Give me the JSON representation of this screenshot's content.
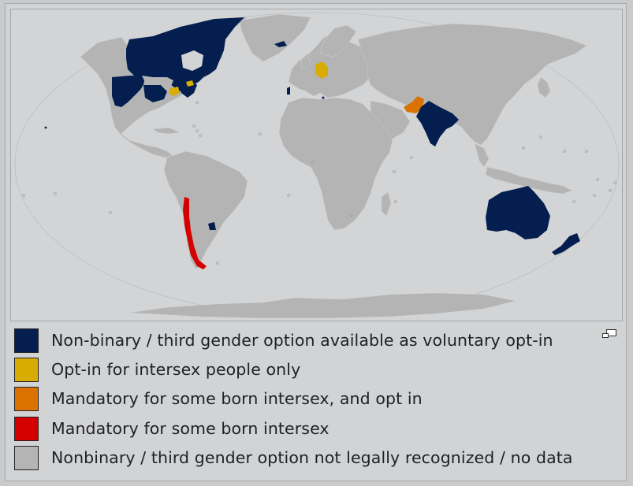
{
  "colors": {
    "voluntary_opt_in": "#041e4f",
    "intersex_only": "#d8ac03",
    "mandatory_and_opt_in": "#da7200",
    "mandatory": "#d40000",
    "not_recognized": "#b4b4b4",
    "ocean": "#d3d4d6",
    "border": "#cfcfcf"
  },
  "map": {
    "regions": [
      {
        "name": "Canada",
        "category": "voluntary_opt_in"
      },
      {
        "name": "United States (some states)",
        "category": "voluntary_opt_in"
      },
      {
        "name": "Australia",
        "category": "voluntary_opt_in"
      },
      {
        "name": "New Zealand",
        "category": "voluntary_opt_in"
      },
      {
        "name": "India",
        "category": "voluntary_opt_in"
      },
      {
        "name": "Nepal",
        "category": "voluntary_opt_in"
      },
      {
        "name": "Iceland",
        "category": "voluntary_opt_in"
      },
      {
        "name": "Uruguay",
        "category": "voluntary_opt_in"
      },
      {
        "name": "Germany",
        "category": "intersex_only"
      },
      {
        "name": "United States (some states)",
        "category": "intersex_only"
      },
      {
        "name": "Pakistan",
        "category": "mandatory_and_opt_in"
      },
      {
        "name": "Chile",
        "category": "mandatory"
      }
    ]
  },
  "legend": {
    "items": [
      {
        "label": "Non-binary / third gender option available as voluntary opt-in",
        "color": "#041e4f"
      },
      {
        "label": "Opt-in for intersex people only",
        "color": "#d8ac03"
      },
      {
        "label": "Mandatory for some born intersex, and opt in",
        "color": "#da7200"
      },
      {
        "label": "Mandatory for some born intersex",
        "color": "#d40000"
      },
      {
        "label": "Nonbinary / third gender option not legally recognized / no data",
        "color": "#b4b4b4"
      }
    ]
  },
  "icons": {
    "expand": "expand-icon"
  }
}
